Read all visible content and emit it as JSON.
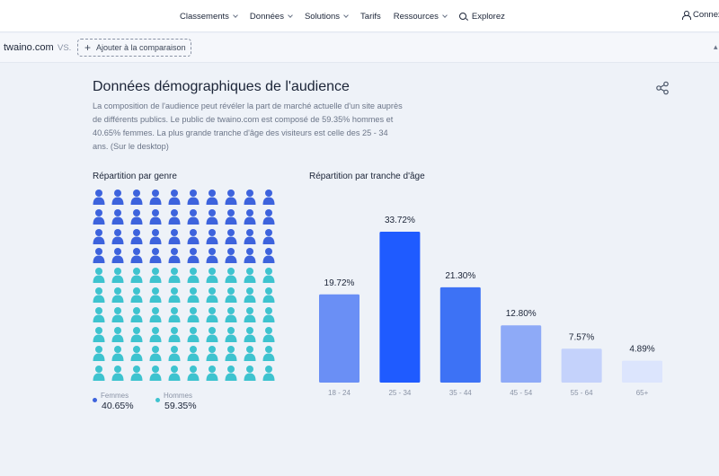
{
  "nav": {
    "items": [
      "Classements",
      "Données",
      "Solutions",
      "Tarifs",
      "Ressources"
    ],
    "explore": "Explorez",
    "login": "Connex"
  },
  "compare": {
    "domain": "twaino.com",
    "vs": "VS.",
    "add_label": "Ajouter à la comparaison"
  },
  "section": {
    "title": "Données démographiques de l'audience",
    "description": "La composition de l'audience peut révéler la part de marché actuelle d'un site auprès de différents publics. Le public de twaino.com est composé de 59.35% hommes et 40.65% femmes. La plus grande tranche d'âge des visiteurs est celle des 25 - 34 ans. (Sur le desktop)"
  },
  "gender": {
    "heading": "Répartition par genre",
    "female_label": "Femmes",
    "female_value": "40.65%",
    "male_label": "Hommes",
    "male_value": "59.35%",
    "female_count": 40,
    "total_icons": 100,
    "colors": {
      "female": "#3d63dd",
      "male": "#3ec3cf"
    }
  },
  "age": {
    "heading": "Répartition par tranche d'âge"
  },
  "chart_data": {
    "type": "bar",
    "title": "Répartition par tranche d'âge",
    "categories": [
      "18 - 24",
      "25 - 34",
      "35 - 44",
      "45 - 54",
      "55 - 64",
      "65+"
    ],
    "values": [
      19.72,
      33.72,
      21.3,
      12.8,
      7.57,
      4.89
    ],
    "labels": [
      "19.72%",
      "33.72%",
      "21.30%",
      "12.80%",
      "7.57%",
      "4.89%"
    ],
    "colors": [
      "#6a8ff5",
      "#1f5bff",
      "#3d72f5",
      "#8eaaf7",
      "#c4d2fb",
      "#dce5fd"
    ],
    "ylim": [
      0,
      33.72
    ]
  }
}
